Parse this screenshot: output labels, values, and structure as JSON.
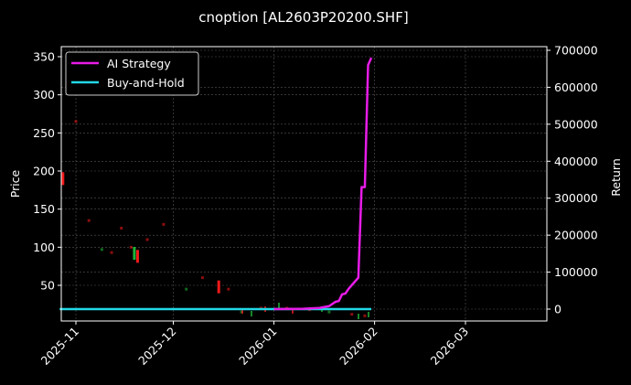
{
  "chart_data": {
    "type": "line",
    "title": "cnoption [AL2603P20200.SHF]",
    "xlabel": "",
    "ylabel": "Price",
    "y2label": "Return",
    "ylim": [
      2,
      362
    ],
    "y2lim": [
      -30000,
      710000
    ],
    "x_ticks": [
      "2025-11",
      "2025-12",
      "2026-01",
      "2026-02",
      "2026-03"
    ],
    "y_ticks": [
      50,
      100,
      150,
      200,
      250,
      300,
      350
    ],
    "y2_ticks": [
      0,
      100000,
      200000,
      300000,
      400000,
      500000,
      600000,
      700000
    ],
    "grid": true,
    "legend_position": "upper left",
    "legend": [
      "AI Strategy",
      "Buy-and-Hold"
    ],
    "series": [
      {
        "name": "AI Strategy",
        "axis": "right",
        "color": "#e81ce8",
        "x": [
          "2026-01-01",
          "2026-01-10",
          "2026-01-15",
          "2026-01-18",
          "2026-01-20",
          "2026-01-21",
          "2026-01-22",
          "2026-01-23",
          "2026-01-24",
          "2026-01-27",
          "2026-01-28",
          "2026-01-29",
          "2026-01-30",
          "2026-01-31"
        ],
        "values": [
          0,
          1000,
          3000,
          8000,
          20000,
          22000,
          40000,
          42000,
          55000,
          85000,
          330000,
          330000,
          660000,
          680000
        ]
      },
      {
        "name": "Buy-and-Hold",
        "axis": "right",
        "color": "#22d8e6",
        "x": [
          "2025-10-27",
          "2026-01-31"
        ],
        "values": [
          0,
          0
        ]
      },
      {
        "name": "Price (candlesticks)",
        "axis": "left",
        "type": "candlestick",
        "up_color": "#1fbf3a",
        "down_color": "#ff1a1a",
        "x": [
          "2025-10-28",
          "2025-11-01",
          "2025-11-05",
          "2025-11-09",
          "2025-11-12",
          "2025-11-15",
          "2025-11-18",
          "2025-11-19",
          "2025-11-20",
          "2025-11-23",
          "2025-11-28",
          "2025-12-05",
          "2025-12-10",
          "2025-12-15",
          "2025-12-18",
          "2025-12-22",
          "2025-12-28",
          "2026-01-05",
          "2026-01-12",
          "2026-01-18",
          "2026-01-25",
          "2026-01-29"
        ],
        "values": [
          190,
          265,
          135,
          97,
          93,
          125,
          100,
          92,
          88,
          110,
          130,
          45,
          60,
          48,
          45,
          15,
          20,
          20,
          18,
          15,
          12,
          10
        ]
      }
    ]
  },
  "legend": {
    "items": [
      {
        "label": "AI Strategy",
        "color": "#e81ce8"
      },
      {
        "label": "Buy-and-Hold",
        "color": "#22d8e6"
      }
    ]
  },
  "axes": {
    "left_label": "Price",
    "right_label": "Return",
    "left_ticks": [
      "50",
      "100",
      "150",
      "200",
      "250",
      "300",
      "350"
    ],
    "right_ticks": [
      "0",
      "100000",
      "200000",
      "300000",
      "400000",
      "500000",
      "600000",
      "700000"
    ],
    "x_ticks": [
      "2025-11",
      "2025-12",
      "2026-01",
      "2026-02",
      "2026-03"
    ]
  },
  "title": "cnoption [AL2603P20200.SHF]"
}
